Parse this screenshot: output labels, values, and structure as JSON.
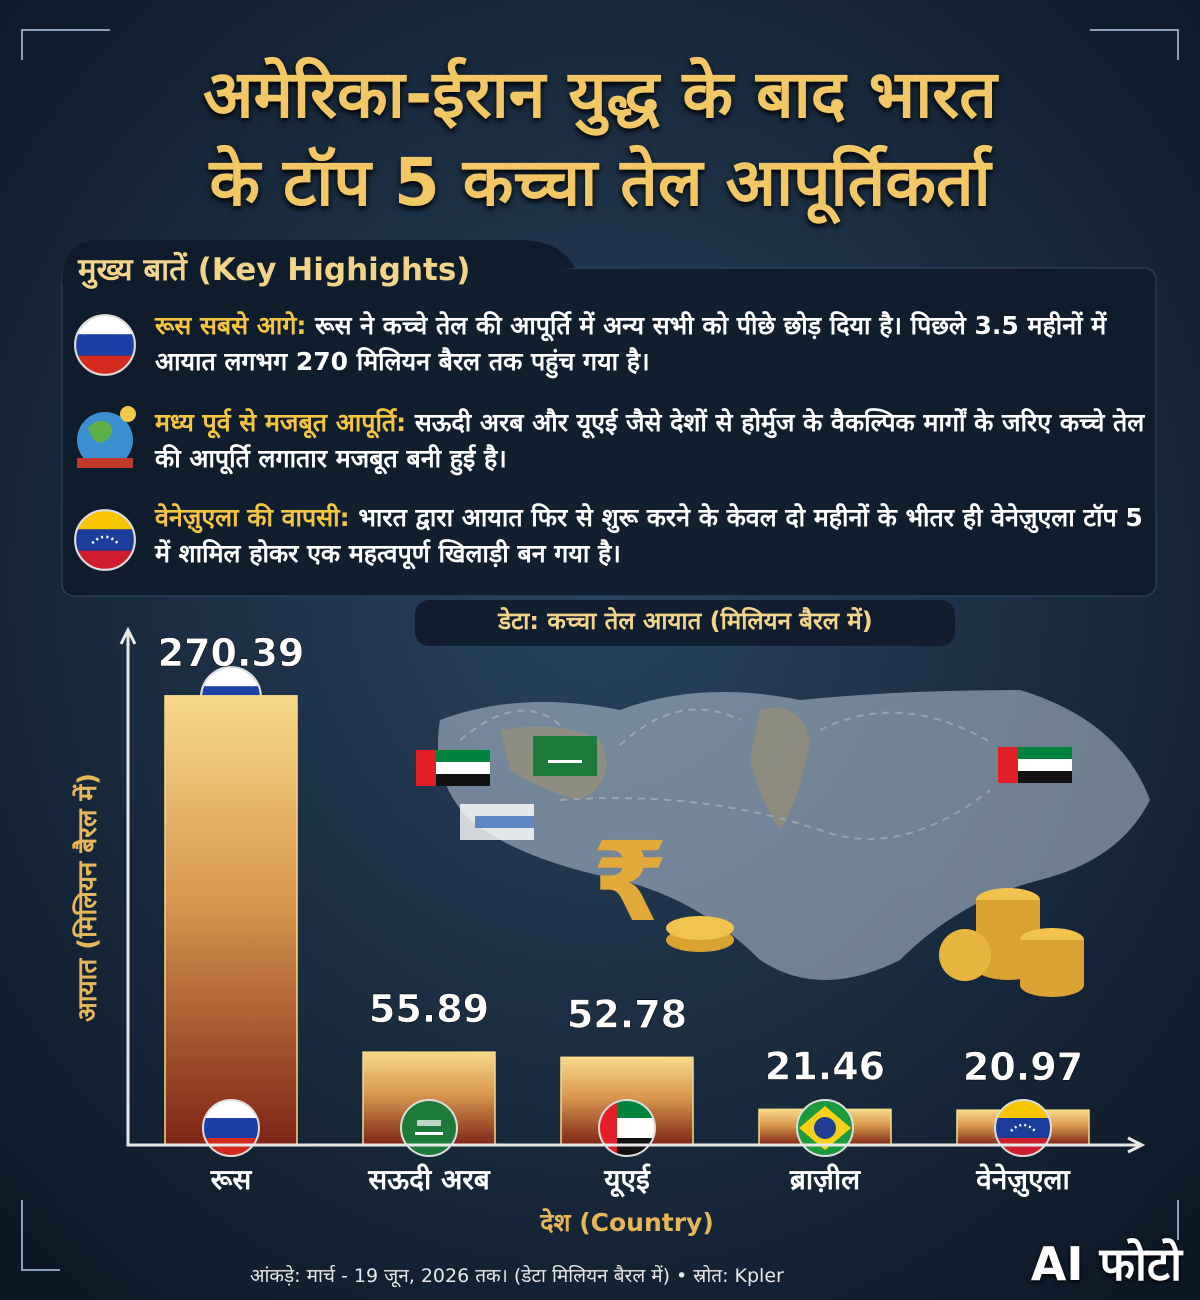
{
  "header": {
    "title_lines": [
      "अमेरिका-ईरान युद्ध के बाद भारत",
      "के टॉप 5 कच्चा तेल आपूर्तिकर्ता"
    ]
  },
  "highlights": {
    "heading": "मुख्य बातें (Key Highights)",
    "items": [
      {
        "lead": "रूस सबसे आगे:",
        "text": "रूस ने कच्चे तेल की आपूर्ति में अन्य सभी को पीछे छोड़ दिया है। पिछले 3.5 महीनों में आयात लगभग 270 मिलियन बैरल तक पहुंच गया है।"
      },
      {
        "lead": "मध्य पूर्व से मजबूत आपूर्ति:",
        "text": "सऊदी अरब और यूएई जैसे देशों से होर्मुज के वैकल्पिक मार्गों के जरिए कच्चे तेल की आपूर्ति लगातार मजबूत बनी हुई है।"
      },
      {
        "lead": "वेनेज़ुएला की वापसी:",
        "text": "भारत द्वारा आयात फिर से शुरू करने के केवल दो महीनों के भीतर ही वेनेज़ुएला टॉप 5 में शामिल होकर एक महत्वपूर्ण खिलाड़ी बन गया है।"
      }
    ]
  },
  "chart_data": {
    "type": "bar",
    "subtitle": "डेटा: कच्चा तेल आयात (मिलियन बैरल में)",
    "y_label": "आयात (मिलियन बैरल में)",
    "x_label": "देश (Country)",
    "categories": [
      "रूस",
      "सऊदी अरब",
      "यूएई",
      "ब्राज़ील",
      "वेनेज़ुएला"
    ],
    "values": [
      270.39,
      55.89,
      52.78,
      21.46,
      20.97
    ],
    "ylim": [
      0,
      310
    ]
  },
  "footer": {
    "note": "आंकड़े: मार्च - 19 जून, 2026 तक। (डेटा मिलियन बैरल में) • स्रोत: Kpler",
    "watermark": "AI फोटो"
  }
}
